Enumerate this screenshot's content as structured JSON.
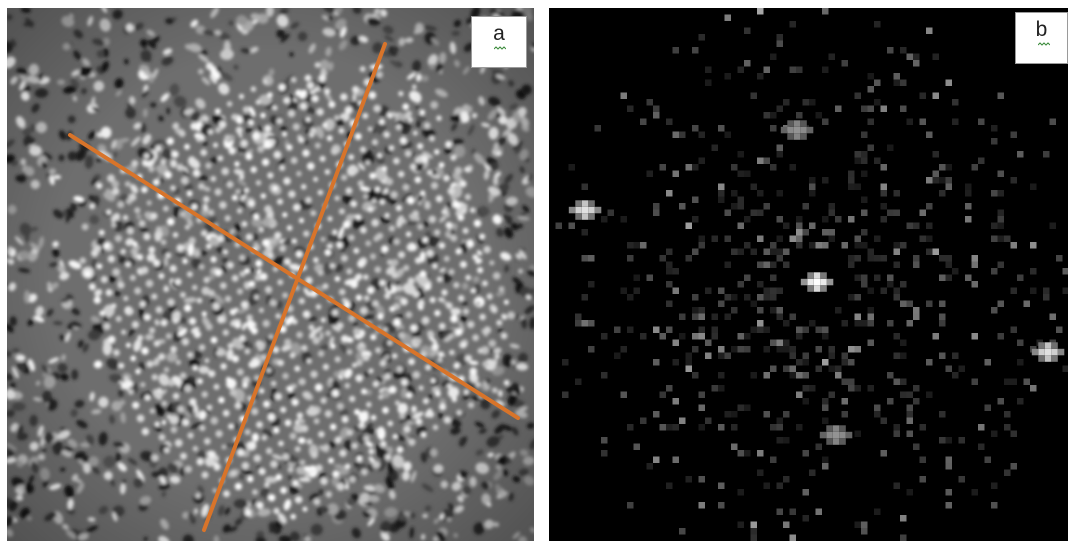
{
  "panels": [
    {
      "id": "a",
      "label": "a",
      "content": "lattice-micrograph-with-axis-lines",
      "line_color": "#d8742a"
    },
    {
      "id": "b",
      "label": "b",
      "content": "diffraction-pattern-spots"
    }
  ],
  "colors": {
    "line": "#d8742a",
    "background_b": "#000000",
    "squiggle": "#3a8a3a"
  }
}
